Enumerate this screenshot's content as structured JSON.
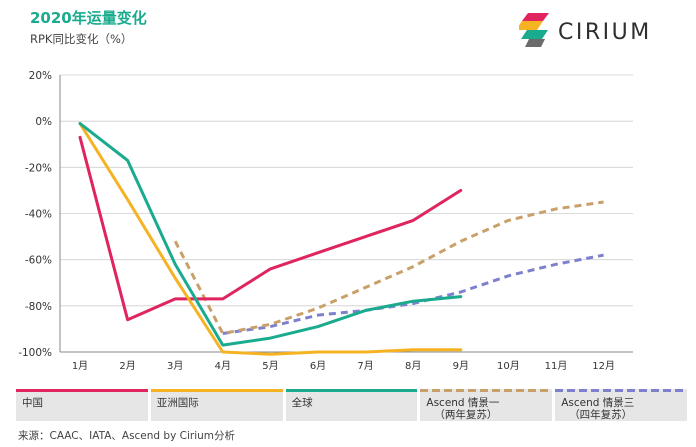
{
  "title": "2020年运量变化",
  "subtitle": "RPK同比变化（%）",
  "logo": {
    "text": "CIRIUM"
  },
  "source": "来源：CAAC、IATA、Ascend by Cirium分析",
  "chart_data": {
    "type": "line",
    "categories": [
      "1月",
      "2月",
      "3月",
      "4月",
      "5月",
      "6月",
      "7月",
      "8月",
      "9月",
      "10月",
      "11月",
      "12月"
    ],
    "y_ticks": [
      "-100%",
      "-80%",
      "-60%",
      "-40%",
      "-20%",
      "0%",
      "20%"
    ],
    "y_tick_values": [
      -100,
      -80,
      -60,
      -40,
      -20,
      0,
      20
    ],
    "ylim": [
      -100,
      20
    ],
    "grid": true,
    "legend_position": "bottom",
    "series": [
      {
        "name": "中国",
        "color": "#e0245e",
        "dashed": false,
        "values": [
          -7,
          -86,
          -77,
          -77,
          -64,
          -57,
          -50,
          -43,
          -30,
          null,
          null,
          null
        ]
      },
      {
        "name": "亚洲国际",
        "color": "#f5b324",
        "dashed": false,
        "values": [
          -1,
          -34,
          -68,
          -100,
          -101,
          -100,
          -100,
          -99,
          -99,
          null,
          null,
          null
        ]
      },
      {
        "name": "全球",
        "color": "#1aab8e",
        "dashed": false,
        "values": [
          -1,
          -17,
          -62,
          -97,
          -94,
          -89,
          -82,
          -78,
          -76,
          null,
          null,
          null
        ]
      },
      {
        "name": "Ascend 情景一",
        "sub": "（两年复苏）",
        "color": "#c9a06a",
        "dashed": true,
        "values": [
          null,
          null,
          -52,
          -92,
          -88,
          -81,
          -72,
          -63,
          -52,
          -43,
          -38,
          -35
        ]
      },
      {
        "name": "Ascend 情景三",
        "sub": "（四年复苏）",
        "color": "#7d80cc",
        "dashed": true,
        "values": [
          null,
          null,
          null,
          -92,
          -89,
          -84,
          -82,
          -79,
          -74,
          -67,
          -62,
          -58
        ]
      }
    ]
  }
}
